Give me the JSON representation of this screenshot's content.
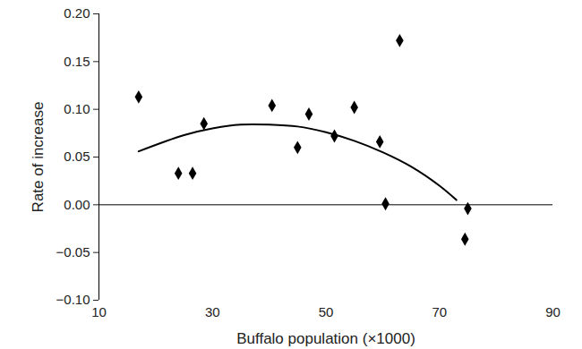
{
  "chart_data": {
    "type": "scatter",
    "x_label": "Buffalo population (×1000)",
    "y_label": "Rate of increase",
    "xlim": [
      10,
      90
    ],
    "xticks": [
      10,
      30,
      50,
      70,
      90
    ],
    "ylim": [
      -0.1,
      0.2
    ],
    "yticks": [
      {
        "value": -0.1,
        "label": "−0.10"
      },
      {
        "value": -0.05,
        "label": "−0.05"
      },
      {
        "value": 0,
        "label": "0.00"
      },
      {
        "value": 0.05,
        "label": "0.05"
      },
      {
        "value": 0.1,
        "label": "0.10"
      },
      {
        "value": 0.15,
        "label": "0.15"
      },
      {
        "value": 0.2,
        "label": "0.20"
      }
    ],
    "grid": false,
    "series": [
      {
        "type": "scatter",
        "marker": "diamond",
        "color": "#000000",
        "x": [
          17,
          24,
          26.5,
          28.5,
          40.5,
          45,
          47,
          51.5,
          55,
          59.5,
          60.5,
          63,
          75,
          74.5
        ],
        "values": [
          0.113,
          0.033,
          0.033,
          0.085,
          0.104,
          0.06,
          0.095,
          0.072,
          0.102,
          0.066,
          0.001,
          0.172,
          -0.004,
          -0.036
        ]
      },
      {
        "type": "line",
        "line_style": "solid",
        "color": "#000000",
        "x": [
          17,
          25,
          30,
          35,
          40,
          45,
          50,
          55,
          60,
          65,
          70,
          73
        ],
        "values": [
          0.056,
          0.073,
          0.08,
          0.084,
          0.084,
          0.082,
          0.076,
          0.067,
          0.055,
          0.04,
          0.02,
          0.005
        ]
      }
    ]
  }
}
